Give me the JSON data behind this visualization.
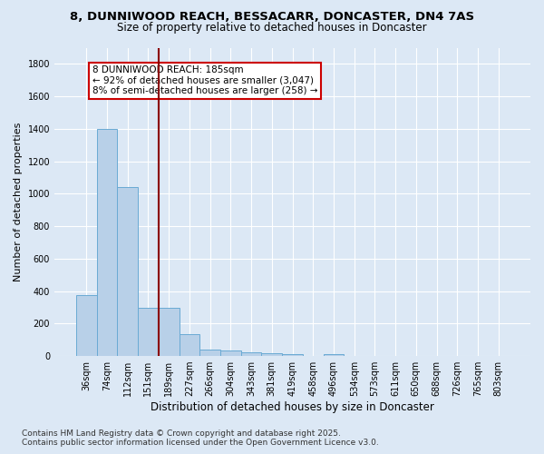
{
  "title_line1": "8, DUNNIWOOD REACH, BESSACARR, DONCASTER, DN4 7AS",
  "title_line2": "Size of property relative to detached houses in Doncaster",
  "xlabel": "Distribution of detached houses by size in Doncaster",
  "ylabel": "Number of detached properties",
  "categories": [
    "36sqm",
    "74sqm",
    "112sqm",
    "151sqm",
    "189sqm",
    "227sqm",
    "266sqm",
    "304sqm",
    "343sqm",
    "381sqm",
    "419sqm",
    "458sqm",
    "496sqm",
    "534sqm",
    "573sqm",
    "611sqm",
    "650sqm",
    "688sqm",
    "726sqm",
    "765sqm",
    "803sqm"
  ],
  "values": [
    375,
    1400,
    1040,
    295,
    295,
    135,
    40,
    35,
    25,
    15,
    10,
    0,
    10,
    0,
    0,
    0,
    0,
    0,
    0,
    0,
    0
  ],
  "bar_color": "#b8d0e8",
  "bar_edge_color": "#6aaad4",
  "red_line_index": 4,
  "red_line_color": "#8b0000",
  "annotation_text": "8 DUNNIWOOD REACH: 185sqm\n← 92% of detached houses are smaller (3,047)\n8% of semi-detached houses are larger (258) →",
  "annotation_box_facecolor": "#ffffff",
  "annotation_box_edgecolor": "#cc0000",
  "ylim": [
    0,
    1900
  ],
  "yticks": [
    0,
    200,
    400,
    600,
    800,
    1000,
    1200,
    1400,
    1600,
    1800
  ],
  "footnote": "Contains HM Land Registry data © Crown copyright and database right 2025.\nContains public sector information licensed under the Open Government Licence v3.0.",
  "background_color": "#dce8f5",
  "grid_color": "#ffffff",
  "title_fontsize": 9.5,
  "subtitle_fontsize": 8.5,
  "xlabel_fontsize": 8.5,
  "ylabel_fontsize": 8,
  "tick_fontsize": 7,
  "annotation_fontsize": 7.5,
  "footnote_fontsize": 6.5
}
